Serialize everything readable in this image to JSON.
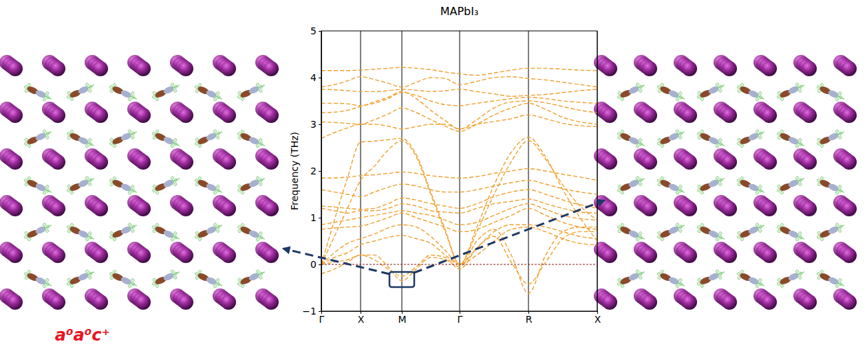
{
  "chart_data": {
    "type": "line",
    "title": "MAPbI₃",
    "y_label": "Frequency (THz)",
    "annotations": [
      "a⁰a⁰c⁺"
    ],
    "x": [
      0,
      0.19,
      0.38,
      0.57,
      0.77,
      0.97,
      1.17,
      1.38,
      1.59,
      1.8,
      2.01,
      2.26,
      2.51,
      2.76,
      3.01,
      3.26,
      3.51,
      3.76,
      4.01
    ],
    "xlim": [
      0,
      4.01
    ],
    "xticks": [
      {
        "value": 0,
        "label": "Γ"
      },
      {
        "value": 0.57,
        "label": "X"
      },
      {
        "value": 1.17,
        "label": "M"
      },
      {
        "value": 2.01,
        "label": "Γ"
      },
      {
        "value": 3.01,
        "label": "R"
      },
      {
        "value": 4.01,
        "label": "X"
      }
    ],
    "ylim": [
      -1,
      5
    ],
    "yticks": [
      {
        "value": -1,
        "label": "−1"
      },
      0,
      1,
      2,
      3,
      4,
      5
    ],
    "grid": "x",
    "reference_line": 0,
    "color": "#f0a030",
    "line_style": "dashed",
    "series": [
      {
        "values": [
          4.15,
          4.15,
          4.15,
          4.16,
          4.18,
          4.2,
          4.22,
          4.2,
          4.17,
          4.12,
          4.08,
          4.05,
          4.1,
          4.16,
          4.2,
          4.2,
          4.18,
          4.16,
          4.15
        ]
      },
      {
        "values": [
          3.8,
          3.85,
          3.93,
          4.02,
          3.96,
          3.88,
          3.8,
          3.9,
          4.0,
          3.98,
          3.85,
          3.92,
          4.0,
          4.02,
          3.98,
          3.95,
          3.9,
          3.85,
          3.8
        ]
      },
      {
        "values": [
          3.75,
          3.74,
          3.72,
          3.7,
          3.7,
          3.72,
          3.75,
          3.73,
          3.7,
          3.72,
          3.75,
          3.7,
          3.65,
          3.6,
          3.62,
          3.64,
          3.68,
          3.72,
          3.75
        ]
      },
      {
        "values": [
          3.45,
          3.45,
          3.44,
          3.4,
          3.45,
          3.55,
          3.68,
          3.62,
          3.5,
          3.42,
          3.4,
          3.45,
          3.5,
          3.55,
          3.58,
          3.55,
          3.5,
          3.47,
          3.45
        ]
      },
      {
        "values": [
          3.25,
          3.26,
          3.3,
          3.38,
          3.48,
          3.58,
          3.7,
          3.55,
          3.3,
          3.08,
          2.9,
          3.1,
          3.35,
          3.48,
          3.5,
          3.46,
          3.38,
          3.3,
          3.25
        ]
      },
      {
        "values": [
          3.05,
          3.04,
          3.02,
          3.0,
          3.1,
          3.22,
          3.35,
          3.25,
          3.1,
          2.96,
          2.85,
          3.0,
          3.2,
          3.35,
          3.45,
          3.32,
          3.15,
          3.05,
          3.0
        ]
      },
      {
        "values": [
          2.7,
          2.82,
          2.92,
          3.0,
          3.0,
          2.96,
          2.9,
          2.95,
          3.0,
          3.0,
          2.9,
          3.0,
          3.06,
          3.12,
          3.2,
          3.12,
          3.02,
          2.97,
          2.95
        ]
      },
      {
        "values": [
          0,
          0.95,
          1.85,
          2.62,
          2.64,
          2.67,
          2.7,
          2.35,
          1.55,
          0.75,
          0,
          0.8,
          1.7,
          2.4,
          2.72,
          2.3,
          1.6,
          1.0,
          0.5
        ]
      },
      {
        "values": [
          0,
          0.6,
          1.2,
          1.8,
          2.1,
          2.45,
          2.65,
          2.3,
          1.5,
          0.7,
          0,
          0.7,
          1.5,
          2.2,
          2.65,
          2.25,
          1.7,
          1.25,
          0.95
        ]
      },
      {
        "values": [
          1.85,
          1.85,
          1.87,
          1.9,
          1.92,
          1.95,
          1.98,
          1.95,
          1.9,
          1.87,
          1.85,
          1.88,
          1.95,
          2.0,
          2.05,
          2.0,
          1.93,
          1.87,
          1.8
        ]
      },
      {
        "values": [
          1.6,
          1.55,
          1.5,
          1.45,
          1.55,
          1.65,
          1.72,
          1.68,
          1.6,
          1.55,
          1.55,
          1.6,
          1.68,
          1.75,
          1.8,
          1.72,
          1.62,
          1.55,
          1.5
        ]
      },
      {
        "values": [
          1.25,
          1.23,
          1.2,
          1.18,
          1.2,
          1.3,
          1.42,
          1.38,
          1.3,
          1.25,
          1.2,
          1.3,
          1.45,
          1.55,
          1.6,
          1.5,
          1.38,
          1.28,
          1.2
        ]
      },
      {
        "values": [
          1.2,
          1.15,
          1.1,
          1.15,
          1.15,
          1.2,
          1.3,
          1.25,
          1.15,
          1.12,
          1.1,
          1.2,
          1.3,
          1.35,
          1.4,
          1.3,
          1.2,
          1.12,
          1.1
        ]
      },
      {
        "values": [
          0.85,
          0.9,
          0.95,
          1.0,
          1.05,
          1.1,
          1.15,
          1.1,
          1.05,
          0.95,
          0.85,
          0.9,
          1.05,
          1.2,
          1.3,
          1.18,
          1.05,
          0.98,
          0.95
        ]
      },
      {
        "values": [
          0.75,
          0.78,
          0.8,
          0.82,
          0.9,
          1.0,
          1.1,
          1.0,
          0.9,
          0.8,
          0.7,
          0.75,
          0.9,
          1.05,
          1.2,
          1.05,
          0.9,
          0.8,
          0.75
        ]
      },
      {
        "values": [
          0,
          0.25,
          0.45,
          0.55,
          0.65,
          0.78,
          0.85,
          0.8,
          0.6,
          0.3,
          0,
          0.35,
          0.7,
          0.85,
          0.85,
          0.8,
          0.7,
          0.6,
          0.55
        ]
      },
      {
        "values": [
          0,
          0.15,
          0.25,
          0.42,
          0.5,
          0.58,
          0.62,
          0.55,
          0.45,
          0.2,
          0,
          0.2,
          0.5,
          0.75,
          0.8,
          0.7,
          0.55,
          0.45,
          0.42
        ]
      },
      {
        "values": [
          0,
          0.05,
          0.1,
          0.2,
          0.1,
          -0.1,
          -0.25,
          -0.05,
          0.2,
          0.15,
          -0.1,
          0.35,
          0.6,
          0.05,
          -0.42,
          0.05,
          0.55,
          0.7,
          0.7
        ]
      },
      {
        "values": [
          -0.2,
          -0.1,
          0.05,
          0.2,
          0.2,
          -0.05,
          -0.35,
          -0.1,
          0.15,
          0.1,
          -0.05,
          0.5,
          0.75,
          0.2,
          -0.62,
          0.2,
          0.7,
          0.8,
          0.8
        ]
      }
    ]
  }
}
